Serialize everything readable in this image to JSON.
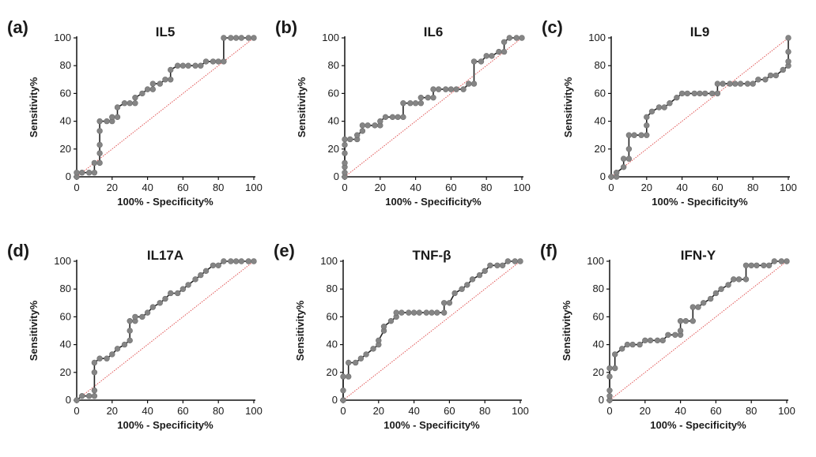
{
  "figure": {
    "panels": [
      "(a)",
      "(b)",
      "(c)",
      "(d)",
      "(e)",
      "(f)"
    ]
  },
  "chart_data": [
    {
      "type": "line",
      "letter": "(a)",
      "title": "IL5",
      "xlabel": "100% - Specificity%",
      "ylabel": "Sensitivity%",
      "xlim": [
        0,
        100
      ],
      "ylim": [
        0,
        100
      ],
      "xticks": [
        "0",
        "20",
        "40",
        "60",
        "80",
        "100"
      ],
      "yticks": [
        "0",
        "20",
        "40",
        "60",
        "80",
        "100"
      ],
      "grid": false,
      "diagonal": "reference line",
      "x": [
        0,
        0,
        3,
        7,
        10,
        10,
        13,
        13,
        13,
        13,
        13,
        17,
        20,
        20,
        23,
        23,
        27,
        30,
        33,
        33,
        37,
        40,
        43,
        43,
        47,
        50,
        53,
        53,
        57,
        60,
        63,
        67,
        70,
        73,
        77,
        80,
        83,
        83,
        87,
        90,
        93,
        97,
        100
      ],
      "y": [
        0,
        3,
        3,
        3,
        3,
        10,
        10,
        17,
        23,
        33,
        40,
        40,
        40,
        43,
        43,
        50,
        53,
        53,
        53,
        57,
        60,
        63,
        63,
        67,
        67,
        70,
        70,
        77,
        80,
        80,
        80,
        80,
        80,
        83,
        83,
        83,
        83,
        100,
        100,
        100,
        100,
        100,
        100
      ]
    },
    {
      "type": "line",
      "letter": "(b)",
      "title": "IL6",
      "xlabel": "100% - Specificity%",
      "ylabel": "Sensitivity%",
      "xlim": [
        0,
        100
      ],
      "ylim": [
        0,
        100
      ],
      "xticks": [
        "0",
        "20",
        "40",
        "60",
        "80",
        "100"
      ],
      "yticks": [
        "0",
        "20",
        "40",
        "60",
        "80",
        "100"
      ],
      "grid": false,
      "diagonal": "reference line",
      "x": [
        0,
        0,
        0,
        0,
        0,
        0,
        0,
        3,
        7,
        7,
        10,
        10,
        13,
        17,
        20,
        20,
        23,
        27,
        30,
        33,
        33,
        37,
        40,
        43,
        43,
        47,
        50,
        50,
        53,
        57,
        60,
        63,
        67,
        70,
        73,
        73,
        77,
        80,
        83,
        87,
        90,
        90,
        93,
        97,
        100
      ],
      "y": [
        0,
        3,
        7,
        10,
        17,
        23,
        27,
        27,
        27,
        30,
        33,
        37,
        37,
        37,
        37,
        40,
        43,
        43,
        43,
        43,
        53,
        53,
        53,
        53,
        57,
        57,
        57,
        63,
        63,
        63,
        63,
        63,
        63,
        67,
        67,
        83,
        83,
        87,
        87,
        90,
        90,
        97,
        100,
        100,
        100
      ]
    },
    {
      "type": "line",
      "letter": "(c)",
      "title": "IL9",
      "xlabel": "100% - Specificity%",
      "ylabel": "Sensitivity%",
      "xlim": [
        0,
        100
      ],
      "ylim": [
        0,
        100
      ],
      "xticks": [
        "0",
        "20",
        "40",
        "60",
        "80",
        "100"
      ],
      "yticks": [
        "0",
        "20",
        "40",
        "60",
        "80",
        "100"
      ],
      "grid": false,
      "diagonal": "reference line",
      "x": [
        0,
        3,
        3,
        7,
        7,
        10,
        10,
        10,
        13,
        17,
        20,
        20,
        20,
        23,
        27,
        30,
        33,
        37,
        40,
        43,
        47,
        50,
        53,
        57,
        60,
        60,
        63,
        67,
        70,
        73,
        77,
        80,
        83,
        87,
        90,
        93,
        97,
        100,
        100,
        100,
        100
      ],
      "y": [
        0,
        0,
        3,
        7,
        13,
        13,
        20,
        30,
        30,
        30,
        30,
        37,
        43,
        47,
        50,
        50,
        53,
        57,
        60,
        60,
        60,
        60,
        60,
        60,
        60,
        67,
        67,
        67,
        67,
        67,
        67,
        67,
        70,
        70,
        73,
        73,
        77,
        80,
        83,
        90,
        100
      ]
    },
    {
      "type": "line",
      "letter": "(d)",
      "title": "IL17A",
      "xlabel": "100% - Specificity%",
      "ylabel": "Sensitivity%",
      "xlim": [
        0,
        100
      ],
      "ylim": [
        0,
        100
      ],
      "xticks": [
        "0",
        "20",
        "40",
        "60",
        "80",
        "100"
      ],
      "yticks": [
        "0",
        "20",
        "40",
        "60",
        "80",
        "100"
      ],
      "grid": false,
      "diagonal": "reference line",
      "x": [
        0,
        3,
        7,
        10,
        10,
        10,
        10,
        13,
        17,
        20,
        23,
        27,
        30,
        30,
        30,
        33,
        33,
        37,
        40,
        43,
        47,
        50,
        53,
        57,
        60,
        63,
        67,
        70,
        73,
        77,
        80,
        83,
        87,
        90,
        93,
        97,
        100
      ],
      "y": [
        0,
        3,
        3,
        3,
        7,
        20,
        27,
        30,
        30,
        33,
        37,
        40,
        43,
        50,
        57,
        57,
        60,
        60,
        63,
        67,
        70,
        73,
        77,
        77,
        80,
        83,
        87,
        90,
        93,
        97,
        97,
        100,
        100,
        100,
        100,
        100,
        100
      ]
    },
    {
      "type": "line",
      "letter": "(e)",
      "title": "TNF-β",
      "xlabel": "100% - Specificity%",
      "ylabel": "Sensitivity%",
      "xlim": [
        0,
        100
      ],
      "ylim": [
        0,
        100
      ],
      "xticks": [
        "0",
        "20",
        "40",
        "60",
        "80",
        "100"
      ],
      "yticks": [
        "0",
        "20",
        "40",
        "60",
        "80",
        "100"
      ],
      "grid": false,
      "diagonal": "reference line",
      "x": [
        0,
        0,
        0,
        3,
        3,
        7,
        10,
        13,
        17,
        20,
        20,
        23,
        23,
        27,
        30,
        30,
        33,
        37,
        40,
        43,
        47,
        50,
        53,
        57,
        57,
        60,
        63,
        67,
        70,
        73,
        77,
        80,
        83,
        87,
        90,
        93,
        97,
        100
      ],
      "y": [
        0,
        7,
        17,
        17,
        27,
        27,
        30,
        33,
        37,
        40,
        43,
        50,
        53,
        57,
        60,
        63,
        63,
        63,
        63,
        63,
        63,
        63,
        63,
        63,
        70,
        70,
        77,
        80,
        83,
        87,
        90,
        93,
        97,
        97,
        97,
        100,
        100,
        100
      ]
    },
    {
      "type": "line",
      "letter": "(f)",
      "title": "IFN-Y",
      "xlabel": "100% - Specificity%",
      "ylabel": "Sensitivity%",
      "xlim": [
        0,
        100
      ],
      "ylim": [
        0,
        100
      ],
      "xticks": [
        "0",
        "20",
        "40",
        "60",
        "80",
        "100"
      ],
      "yticks": [
        "0",
        "20",
        "40",
        "60",
        "80",
        "100"
      ],
      "grid": false,
      "diagonal": "reference line",
      "x": [
        0,
        0,
        0,
        0,
        0,
        3,
        3,
        7,
        10,
        13,
        17,
        20,
        23,
        27,
        30,
        33,
        37,
        40,
        40,
        40,
        43,
        47,
        47,
        50,
        53,
        57,
        60,
        63,
        67,
        70,
        73,
        77,
        77,
        80,
        83,
        87,
        90,
        93,
        97,
        100
      ],
      "y": [
        0,
        3,
        7,
        17,
        23,
        23,
        33,
        37,
        40,
        40,
        40,
        43,
        43,
        43,
        43,
        47,
        47,
        47,
        50,
        57,
        57,
        57,
        67,
        67,
        70,
        73,
        77,
        80,
        83,
        87,
        87,
        87,
        97,
        97,
        97,
        97,
        97,
        100,
        100,
        100
      ]
    }
  ]
}
